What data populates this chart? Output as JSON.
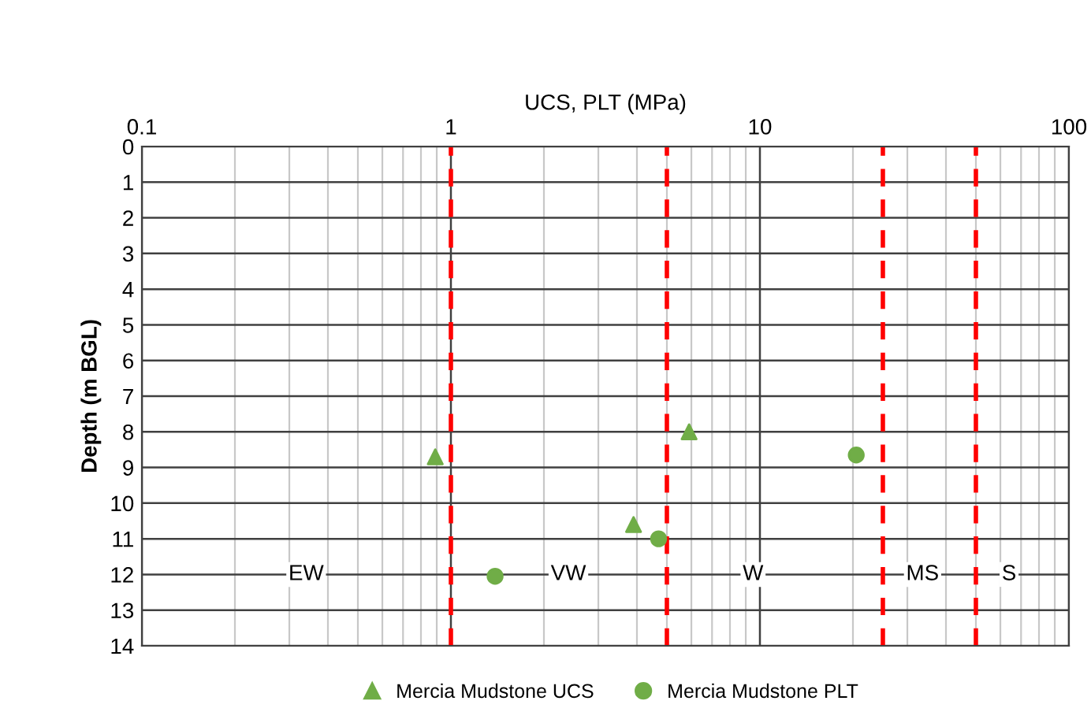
{
  "chart_data": {
    "type": "scatter",
    "xlabel": "UCS, PLT (MPa)",
    "ylabel": "Depth (m BGL)",
    "log": "x",
    "xlim": [
      0.1,
      100
    ],
    "xticks": [
      0.1,
      1,
      10,
      100
    ],
    "ylim": [
      14,
      0
    ],
    "yticks": [
      0,
      1,
      2,
      3,
      4,
      5,
      6,
      7,
      8,
      9,
      10,
      11,
      12,
      13,
      14
    ],
    "grid": true,
    "legend": "bottom",
    "series": [
      {
        "name": "Mercia Mudstone UCS",
        "color": "#70ad47",
        "marker": "triangle",
        "x": [
          0.89,
          5.9,
          3.9
        ],
        "values": [
          8.7,
          8.0,
          10.6
        ]
      },
      {
        "name": "Mercia Mudstone PLT",
        "color": "#70ad47",
        "marker": "circle",
        "x": [
          20.5,
          4.7,
          1.39
        ],
        "values": [
          8.65,
          11.0,
          12.05
        ]
      }
    ],
    "ref_lines": [
      {
        "axis": "x",
        "value": 1,
        "color": "#ff0000",
        "line_style": "dashed"
      },
      {
        "axis": "x",
        "value": 5,
        "color": "#ff0000",
        "line_style": "dashed"
      },
      {
        "axis": "x",
        "value": 25,
        "color": "#ff0000",
        "line_style": "dashed"
      },
      {
        "axis": "x",
        "value": 50,
        "color": "#ff0000",
        "line_style": "dashed"
      }
    ],
    "annotations": [
      {
        "text": "EW",
        "x": 0.34,
        "y": 12
      },
      {
        "text": "VW",
        "x": 2.4,
        "y": 12
      },
      {
        "text": "W",
        "x": 9.5,
        "y": 12
      },
      {
        "text": "MS",
        "x": 33.6,
        "y": 12
      },
      {
        "text": "S",
        "x": 64,
        "y": 12
      }
    ]
  }
}
